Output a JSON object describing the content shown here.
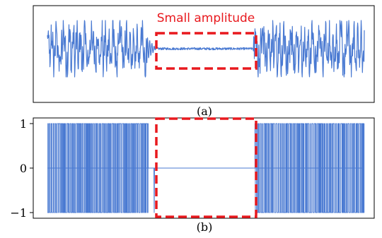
{
  "colors": {
    "signal": "#4a7ad2",
    "highlight": "#e8191e",
    "frame": "#000000",
    "background": "#ffffff"
  },
  "chart_data": [
    {
      "type": "line",
      "panel_label": "(a)",
      "annotation": "Small amplitude",
      "x_domain": [
        0,
        1000
      ],
      "segments": [
        {
          "x_range": [
            0,
            315
          ],
          "behavior": "chaotic oscillation, large amplitude",
          "amplitude": [
            -1.0,
            1.0
          ]
        },
        {
          "x_range": [
            315,
            340
          ],
          "behavior": "decaying oscillation",
          "amplitude": [
            -0.35,
            0.35
          ]
        },
        {
          "x_range": [
            340,
            650
          ],
          "behavior": "near-constant small-amplitude noise",
          "amplitude": [
            -0.04,
            0.04
          ]
        },
        {
          "x_range": [
            650,
            1000
          ],
          "behavior": "chaotic oscillation, large amplitude",
          "amplitude": [
            -1.0,
            1.0
          ]
        }
      ],
      "highlight_box_x": [
        340,
        650
      ],
      "axes_visible": false,
      "grid": false
    },
    {
      "type": "line",
      "panel_label": "(b)",
      "x_domain": [
        0,
        1000
      ],
      "ylim": [
        -1.1,
        1.1
      ],
      "yticks": [
        {
          "value": 1,
          "label": "1"
        },
        {
          "value": 0,
          "label": "0"
        },
        {
          "value": -1,
          "label": "−1"
        }
      ],
      "levels": [
        -1,
        0,
        1
      ],
      "segments": [
        {
          "x_range": [
            0,
            330
          ],
          "behavior": "rapid switching between +1 and −1"
        },
        {
          "x_range": [
            330,
            340
          ],
          "behavior": "single transition then zero"
        },
        {
          "x_range": [
            340,
            655
          ],
          "behavior": "constant at 0",
          "value": 0
        },
        {
          "x_range": [
            655,
            1000
          ],
          "behavior": "rapid switching between +1 and −1"
        }
      ],
      "highlight_box_x": [
        340,
        655
      ],
      "grid": false
    }
  ]
}
